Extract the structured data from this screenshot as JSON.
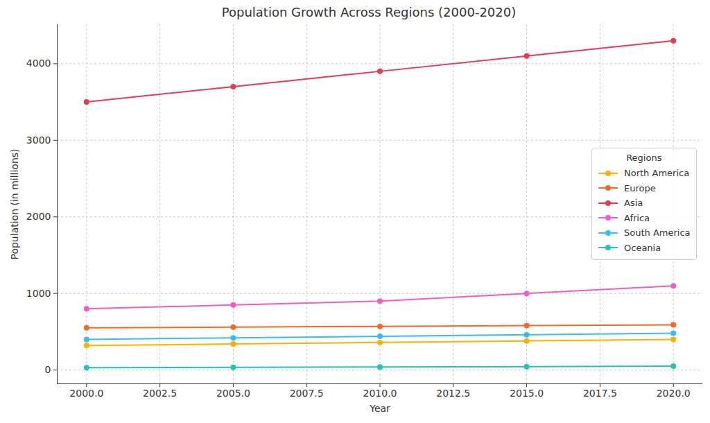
{
  "chart_data": {
    "type": "line",
    "title": "Population Growth Across Regions (2000-2020)",
    "x_label": "Year",
    "y_label": "Population (in millions)",
    "x": [
      2000,
      2005,
      2010,
      2015,
      2020
    ],
    "series": [
      {
        "name": "North America",
        "color": "#ffaf00",
        "values": [
          320,
          340,
          360,
          380,
          400
        ]
      },
      {
        "name": "Europe",
        "color": "#f46a25",
        "values": [
          550,
          560,
          570,
          580,
          590
        ]
      },
      {
        "name": "Asia",
        "color": "#e83a51",
        "values": [
          3500,
          3700,
          3900,
          4100,
          4300
        ]
      },
      {
        "name": "Africa",
        "color": "#f25cc6",
        "values": [
          800,
          850,
          900,
          1000,
          1100
        ]
      },
      {
        "name": "South America",
        "color": "#38bdf0",
        "values": [
          400,
          420,
          440,
          460,
          480
        ]
      },
      {
        "name": "Oceania",
        "color": "#1fc6b6",
        "values": [
          30,
          35,
          40,
          45,
          50
        ]
      }
    ],
    "xlim": [
      1999,
      2021
    ],
    "xticks": [
      {
        "value": 2000,
        "label": "2000.0"
      },
      {
        "value": 2002.5,
        "label": "2002.5"
      },
      {
        "value": 2005,
        "label": "2005.0"
      },
      {
        "value": 2007.5,
        "label": "2007.5"
      },
      {
        "value": 2010,
        "label": "2010.0"
      },
      {
        "value": 2012.5,
        "label": "2012.5"
      },
      {
        "value": 2015,
        "label": "2015.0"
      },
      {
        "value": 2017.5,
        "label": "2017.5"
      },
      {
        "value": 2020,
        "label": "2020.0"
      }
    ],
    "ylim": [
      -180,
      4510
    ],
    "yticks": [
      0,
      1000,
      2000,
      3000,
      4000
    ],
    "grid": true,
    "legend": "right",
    "legend_title": "Regions",
    "marker": "circle",
    "line_style": "solid"
  }
}
